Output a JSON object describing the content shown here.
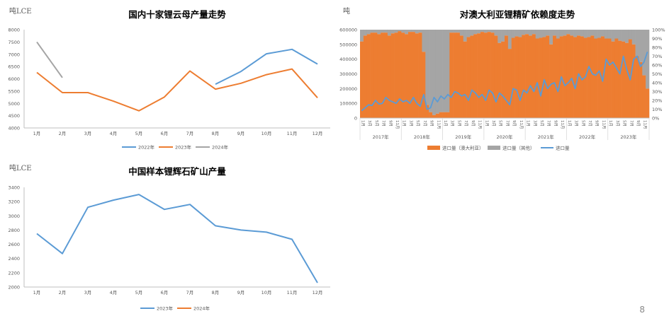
{
  "page_number": "8",
  "colors": {
    "blue": "#5b9bd5",
    "orange": "#ed7d31",
    "gray": "#a5a5a5"
  },
  "chart_data": [
    {
      "id": "c1",
      "type": "line",
      "unit": "吨LCE",
      "title": "国内十家锂云母产量走势",
      "categories": [
        "1月",
        "2月",
        "3月",
        "4月",
        "5月",
        "6月",
        "7月",
        "8月",
        "9月",
        "10月",
        "11月",
        "12月"
      ],
      "ylim": [
        4000,
        8000
      ],
      "yticks": [
        4000,
        4500,
        5000,
        5500,
        6000,
        6500,
        7000,
        7500,
        8000
      ],
      "grid": false,
      "legend_position": "bottom",
      "series": [
        {
          "name": "2022年",
          "color": "#5b9bd5",
          "values": [
            null,
            null,
            null,
            null,
            null,
            null,
            null,
            5780,
            6300,
            7020,
            7200,
            6600
          ]
        },
        {
          "name": "2023年",
          "color": "#ed7d31",
          "values": [
            6260,
            5440,
            5440,
            5090,
            4700,
            5260,
            6320,
            5580,
            5820,
            6170,
            6400,
            5230
          ]
        },
        {
          "name": "2024年",
          "color": "#a5a5a5",
          "values": [
            7500,
            6050,
            null,
            null,
            null,
            null,
            null,
            null,
            null,
            null,
            null,
            null
          ]
        }
      ]
    },
    {
      "id": "c2",
      "type": "bar+line",
      "unit": "吨",
      "title": "对澳大利亚锂精矿依赖度走势",
      "ylim_left": [
        0,
        600000
      ],
      "yticks_left": [
        0,
        100000,
        200000,
        300000,
        400000,
        500000,
        600000
      ],
      "ylim_right": [
        0,
        100
      ],
      "yticks_right": [
        "0%",
        "10%",
        "20%",
        "30%",
        "40%",
        "50%",
        "60%",
        "70%",
        "80%",
        "90%",
        "100%"
      ],
      "month_ticks": [
        "1月",
        "3月",
        "5月",
        "7月",
        "9月",
        "11月"
      ],
      "years": [
        "2017年",
        "2018年",
        "2019年",
        "2020年",
        "2021年",
        "2022年",
        "2023年"
      ],
      "legend_position": "bottom",
      "series": [
        {
          "name": "进口量（澳大利亚）",
          "kind": "bar",
          "color": "#ed7d31",
          "values": [
            520000,
            560000,
            570000,
            580000,
            580000,
            570000,
            580000,
            580000,
            560000,
            575000,
            580000,
            590000,
            580000,
            570000,
            585000,
            585000,
            575000,
            580000,
            450000,
            90000,
            40000,
            20000,
            30000,
            40000,
            40000,
            40000,
            580000,
            580000,
            580000,
            560000,
            520000,
            550000,
            560000,
            570000,
            575000,
            585000,
            580000,
            585000,
            580000,
            560000,
            510000,
            520000,
            560000,
            470000,
            545000,
            555000,
            550000,
            565000,
            570000,
            560000,
            570000,
            540000,
            545000,
            550000,
            560000,
            500000,
            560000,
            540000,
            555000,
            560000,
            570000,
            560000,
            550000,
            560000,
            555000,
            545000,
            550000,
            560000,
            540000,
            545000,
            555000,
            540000,
            540000,
            520000,
            540000,
            525000,
            520000,
            510000,
            535000,
            500000,
            420000,
            380000,
            290000,
            200000
          ]
        },
        {
          "name": "进口量（其他）",
          "kind": "bar",
          "color": "#a5a5a5",
          "values": [
            600000,
            600000,
            600000,
            600000,
            600000,
            600000,
            600000,
            600000,
            600000,
            600000,
            600000,
            600000,
            600000,
            600000,
            600000,
            600000,
            600000,
            600000,
            600000,
            600000,
            600000,
            600000,
            600000,
            600000,
            600000,
            600000,
            600000,
            600000,
            600000,
            600000,
            600000,
            600000,
            600000,
            600000,
            600000,
            600000,
            600000,
            600000,
            600000,
            600000,
            600000,
            600000,
            600000,
            600000,
            600000,
            600000,
            600000,
            600000,
            600000,
            600000,
            600000,
            600000,
            600000,
            600000,
            600000,
            600000,
            600000,
            600000,
            600000,
            600000,
            600000,
            600000,
            600000,
            600000,
            600000,
            600000,
            600000,
            600000,
            600000,
            600000,
            600000,
            600000,
            600000,
            600000,
            600000,
            600000,
            600000,
            600000,
            600000,
            600000,
            600000,
            600000,
            600000,
            600000
          ]
        },
        {
          "name": "进口量",
          "kind": "line",
          "color": "#5b9bd5",
          "values": [
            50000,
            70000,
            90000,
            85000,
            120000,
            95000,
            100000,
            140000,
            120000,
            110000,
            100000,
            130000,
            110000,
            120000,
            100000,
            140000,
            100000,
            80000,
            160000,
            60000,
            70000,
            140000,
            110000,
            150000,
            130000,
            160000,
            140000,
            180000,
            170000,
            150000,
            160000,
            120000,
            190000,
            170000,
            140000,
            160000,
            120000,
            190000,
            170000,
            110000,
            170000,
            150000,
            120000,
            90000,
            200000,
            190000,
            120000,
            190000,
            170000,
            220000,
            180000,
            240000,
            150000,
            260000,
            200000,
            230000,
            240000,
            180000,
            280000,
            220000,
            240000,
            270000,
            200000,
            300000,
            260000,
            280000,
            350000,
            300000,
            290000,
            320000,
            250000,
            400000,
            360000,
            380000,
            340000,
            300000,
            420000,
            330000,
            260000,
            400000,
            420000,
            350000,
            380000,
            450000
          ]
        }
      ]
    },
    {
      "id": "c3",
      "type": "line",
      "unit": "吨LCE",
      "title": "中国样本锂辉石矿山产量",
      "categories": [
        "1月",
        "2月",
        "3月",
        "4月",
        "5月",
        "6月",
        "7月",
        "8月",
        "9月",
        "10月",
        "11月",
        "12月"
      ],
      "ylim": [
        2000,
        3400
      ],
      "yticks": [
        2000,
        2200,
        2400,
        2600,
        2800,
        3000,
        3200,
        3400
      ],
      "grid": false,
      "legend_position": "bottom",
      "series": [
        {
          "name": "2023年",
          "color": "#5b9bd5",
          "values": [
            2750,
            2470,
            3120,
            3220,
            3300,
            3090,
            3160,
            2860,
            2800,
            2770,
            2670,
            2060
          ]
        },
        {
          "name": "2024年",
          "color": "#ed7d31",
          "values": [
            null,
            null,
            null,
            null,
            null,
            null,
            null,
            null,
            null,
            null,
            null,
            null
          ]
        }
      ]
    }
  ]
}
